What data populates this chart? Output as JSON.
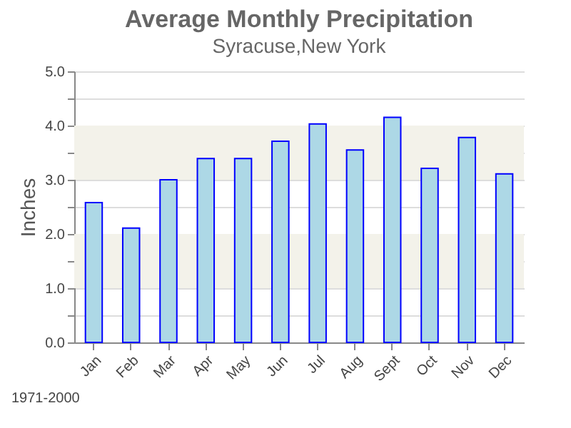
{
  "chart_data": {
    "type": "bar",
    "title": "Average Monthly Precipitation",
    "subtitle": "Syracuse,New York",
    "ylabel": "Inches",
    "categories": [
      "Jan",
      "Feb",
      "Mar",
      "Apr",
      "May",
      "Jun",
      "Jul",
      "Aug",
      "Sept",
      "Oct",
      "Nov",
      "Dec"
    ],
    "values": [
      2.58,
      2.11,
      3.0,
      3.39,
      3.39,
      3.71,
      4.03,
      3.55,
      4.15,
      3.21,
      3.78,
      3.11
    ],
    "color": "#add8e6",
    "ylim": [
      0,
      5
    ],
    "yticks": [
      {
        "value": 0,
        "label": "0.0"
      },
      {
        "value": 0.5,
        "label": null
      },
      {
        "value": 1,
        "label": "1.0"
      },
      {
        "value": 1.5,
        "label": null
      },
      {
        "value": 2,
        "label": "2.0"
      },
      {
        "value": 2.5,
        "label": null
      },
      {
        "value": 3,
        "label": "3.0"
      },
      {
        "value": 3.5,
        "label": null
      },
      {
        "value": 4,
        "label": "4.0"
      },
      {
        "value": 4.5,
        "label": null
      },
      {
        "value": 5,
        "label": "5.0"
      }
    ],
    "grid": "y",
    "bands": [
      {
        "axis": "y",
        "from": 1,
        "to": 2,
        "color": "#f3f2ea"
      },
      {
        "axis": "y",
        "from": 3,
        "to": 4,
        "color": "#f3f2ea"
      }
    ],
    "annotations": [
      "1971-2000"
    ]
  }
}
